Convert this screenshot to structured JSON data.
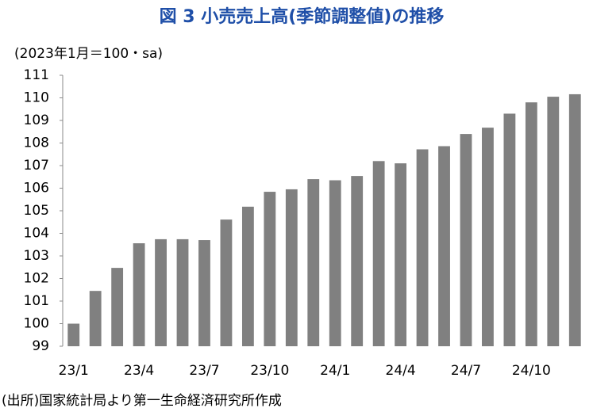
{
  "chart_data": {
    "type": "bar",
    "title": "図 3  小売売上高(季節調整値)の推移",
    "subtitle": "(2023年1月＝100・sa)",
    "source": "(出所)国家統計局より第一生命経済研究所作成",
    "categories": [
      "23/1",
      null,
      null,
      "23/4",
      null,
      null,
      "23/7",
      null,
      null,
      "23/10",
      null,
      null,
      "24/1",
      null,
      null,
      "24/4",
      null,
      null,
      "24/7",
      null,
      null,
      "24/10",
      null,
      null
    ],
    "values": [
      100.0,
      101.45,
      102.47,
      103.56,
      103.74,
      103.74,
      103.7,
      104.61,
      105.18,
      105.84,
      105.95,
      106.4,
      106.35,
      106.54,
      107.2,
      107.1,
      107.72,
      107.86,
      108.4,
      108.68,
      109.3,
      109.8,
      110.05,
      110.16
    ],
    "color": "#808080",
    "ylim": [
      99,
      111
    ],
    "yticks": [
      99,
      100,
      101,
      102,
      103,
      104,
      105,
      106,
      107,
      108,
      109,
      110,
      111
    ],
    "grid": false
  }
}
